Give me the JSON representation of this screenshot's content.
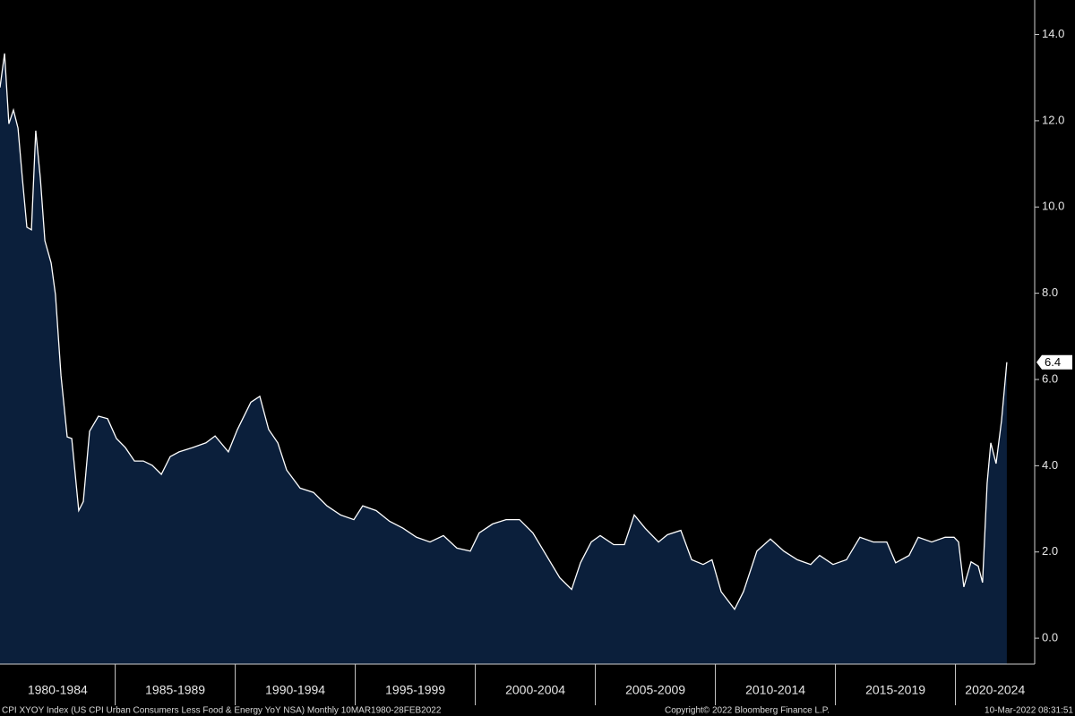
{
  "chart_data": {
    "type": "area",
    "series": [
      {
        "name": "CPI XYOY Index",
        "color": "#ffffff",
        "fill": "#0b1f3b",
        "x": [
          1980.2,
          1980.39,
          1980.57,
          1980.76,
          1980.95,
          1981.13,
          1981.32,
          1981.51,
          1981.69,
          1981.88,
          1982.07,
          1982.33,
          1982.51,
          1982.74,
          1983.0,
          1983.19,
          1983.48,
          1983.67,
          1983.93,
          1984.3,
          1984.68,
          1985.05,
          1985.42,
          1985.8,
          1986.17,
          1986.54,
          1986.92,
          1987.29,
          1987.66,
          1988.22,
          1988.78,
          1989.16,
          1989.71,
          1990.09,
          1990.65,
          1991.02,
          1991.39,
          1991.77,
          1992.14,
          1992.7,
          1993.26,
          1993.82,
          1994.38,
          1994.94,
          1995.31,
          1995.87,
          1996.43,
          1996.99,
          1997.55,
          1998.11,
          1998.67,
          1999.23,
          1999.79,
          2000.16,
          2000.72,
          2001.28,
          2001.84,
          2002.4,
          2002.96,
          2003.52,
          2004.01,
          2004.38,
          2004.83,
          2005.2,
          2005.76,
          2006.21,
          2006.62,
          2007.07,
          2007.63,
          2008.0,
          2008.56,
          2009.01,
          2009.49,
          2009.86,
          2010.24,
          2010.8,
          2011.17,
          2011.73,
          2012.29,
          2012.85,
          2013.41,
          2013.97,
          2014.34,
          2014.9,
          2015.46,
          2016.02,
          2016.58,
          2017.14,
          2017.51,
          2018.07,
          2018.45,
          2019.01,
          2019.57,
          2019.94,
          2020.13,
          2020.35,
          2020.65,
          2020.95,
          2021.13,
          2021.32,
          2021.47,
          2021.69,
          2021.92,
          2022.14
        ],
        "values": [
          12.77,
          13.56,
          11.93,
          12.25,
          11.83,
          10.68,
          9.53,
          9.47,
          11.77,
          10.68,
          9.22,
          8.7,
          7.97,
          6.09,
          4.67,
          4.63,
          2.96,
          3.17,
          4.8,
          5.15,
          5.09,
          4.63,
          4.42,
          4.11,
          4.11,
          4.01,
          3.8,
          4.21,
          4.32,
          4.42,
          4.53,
          4.69,
          4.32,
          4.84,
          5.47,
          5.61,
          4.84,
          4.53,
          3.9,
          3.48,
          3.38,
          3.07,
          2.86,
          2.75,
          3.07,
          2.96,
          2.71,
          2.55,
          2.34,
          2.23,
          2.38,
          2.09,
          2.02,
          2.44,
          2.65,
          2.75,
          2.75,
          2.44,
          1.92,
          1.4,
          1.13,
          1.75,
          2.23,
          2.38,
          2.17,
          2.17,
          2.86,
          2.55,
          2.23,
          2.4,
          2.5,
          1.82,
          1.71,
          1.82,
          1.08,
          0.67,
          1.08,
          2.02,
          2.3,
          2.02,
          1.82,
          1.71,
          1.92,
          1.71,
          1.82,
          2.34,
          2.23,
          2.23,
          1.75,
          1.92,
          2.34,
          2.23,
          2.34,
          2.34,
          2.23,
          1.19,
          1.77,
          1.67,
          1.29,
          3.59,
          4.53,
          4.05,
          5.05,
          6.4
        ]
      }
    ],
    "last_value": 6.4,
    "xlim": [
      1980.2,
      2023.3
    ],
    "xticks": [
      1985,
      1990,
      1995,
      2000,
      2005,
      2010,
      2015,
      2020
    ],
    "period_labels": [
      "1980-1984",
      "1985-1989",
      "1990-1994",
      "1995-1999",
      "2000-2004",
      "2005-2009",
      "2010-2014",
      "2015-2019",
      "2020-2024"
    ],
    "ylim": [
      -0.6,
      14.8
    ],
    "yticks": [
      {
        "value": 0,
        "label": "0.0"
      },
      {
        "value": 2,
        "label": "2.0"
      },
      {
        "value": 4,
        "label": "4.0"
      },
      {
        "value": 6,
        "label": "6.0"
      },
      {
        "value": 8,
        "label": "8.0"
      },
      {
        "value": 10,
        "label": "10.0"
      },
      {
        "value": 12,
        "label": "12.0"
      },
      {
        "value": 14,
        "label": "14.0"
      }
    ],
    "footer": {
      "description": "CPI XYOY Index (US CPI Urban Consumers Less Food & Energy YoY NSA)  Monthly 10MAR1980-28FEB2022",
      "copyright": "Copyright© 2022 Bloomberg Finance L.P.",
      "timestamp": "10-Mar-2022 08:31:51"
    }
  }
}
